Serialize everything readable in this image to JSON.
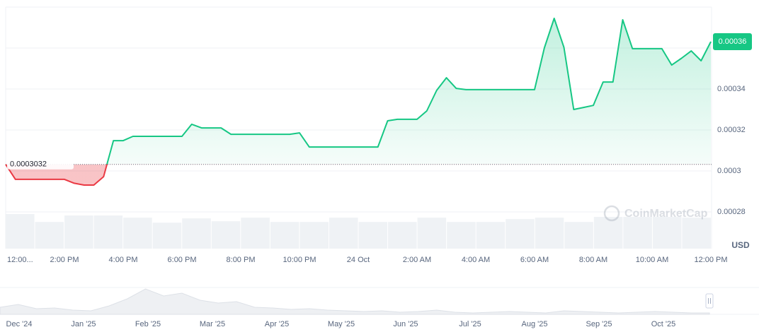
{
  "chart_data": {
    "type": "line",
    "currency_label": "USD",
    "watermark": "CoinMarketCap",
    "series": [
      {
        "name": "Price",
        "color_up": "#16c784",
        "color_down": "#ea3943",
        "values": [
          0.0003032,
          0.0002959,
          0.0002959,
          0.0002959,
          0.0002959,
          0.0002959,
          0.0002959,
          0.000294,
          0.0002931,
          0.0002931,
          0.0002972,
          0.0003148,
          0.0003148,
          0.0003169,
          0.0003169,
          0.0003169,
          0.0003169,
          0.0003169,
          0.0003169,
          0.0003228,
          0.000321,
          0.000321,
          0.000321,
          0.0003179,
          0.0003179,
          0.0003179,
          0.0003179,
          0.0003179,
          0.0003179,
          0.0003179,
          0.0003186,
          0.0003117,
          0.0003117,
          0.0003117,
          0.0003117,
          0.0003117,
          0.0003117,
          0.0003117,
          0.0003117,
          0.0003245,
          0.0003252,
          0.0003252,
          0.0003252,
          0.0003293,
          0.0003393,
          0.0003455,
          0.0003403,
          0.0003397,
          0.0003397,
          0.0003397,
          0.0003397,
          0.0003397,
          0.0003397,
          0.0003397,
          0.0003397,
          0.00036,
          0.0003745,
          0.0003603,
          0.00033,
          0.000331,
          0.000332,
          0.0003434,
          0.0003434,
          0.0003738,
          0.0003597,
          0.0003597,
          0.0003597,
          0.0003597,
          0.0003517,
          0.000355,
          0.0003586,
          0.0003538,
          0.0003631
        ]
      }
    ],
    "baseline": 0.0003032,
    "last_price_label": "0.00036",
    "ylim": [
      0.00028,
      0.00038
    ],
    "yticks": [
      0.00028,
      0.0003,
      0.00032,
      0.00034,
      0.00036
    ],
    "x_labels": [
      "12:00...",
      "2:00 PM",
      "4:00 PM",
      "6:00 PM",
      "8:00 PM",
      "10:00 PM",
      "24 Oct",
      "2:00 AM",
      "4:00 AM",
      "6:00 AM",
      "8:00 AM",
      "10:00 AM",
      "12:00 PM"
    ],
    "volume": [
      48,
      37,
      46,
      46,
      43,
      36,
      42,
      38,
      43,
      37,
      37,
      43,
      37,
      37,
      43,
      37,
      37,
      41,
      43,
      37,
      44,
      44,
      44,
      43
    ],
    "navigator": {
      "labels": [
        "Dec '24",
        "Jan '25",
        "Feb '25",
        "Mar '25",
        "Apr '25",
        "May '25",
        "Jun '25",
        "Jul '25",
        "Aug '25",
        "Sep '25",
        "Oct '25"
      ],
      "values": [
        10,
        14,
        8,
        9,
        6,
        5,
        12,
        22,
        36,
        26,
        30,
        20,
        16,
        18,
        10,
        9,
        7,
        8,
        6,
        5,
        4,
        5,
        3,
        4,
        6,
        3,
        2,
        3,
        4,
        3,
        2,
        5,
        4,
        3,
        2,
        3,
        4,
        3,
        2,
        2
      ]
    }
  }
}
